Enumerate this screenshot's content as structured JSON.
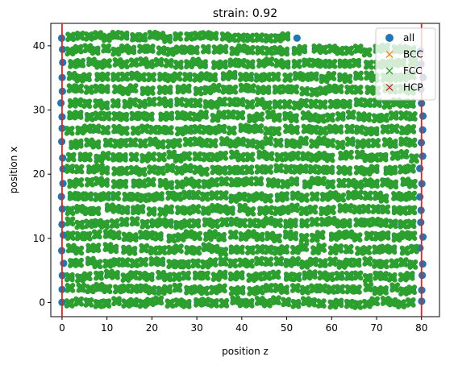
{
  "chart_data": {
    "type": "scatter",
    "title": "strain: 0.92",
    "xlabel": "position z",
    "ylabel": "position x",
    "xlim": [
      -2.5,
      84
    ],
    "ylim": [
      -2.2,
      43.5
    ],
    "xticks": [
      0,
      10,
      20,
      30,
      40,
      50,
      60,
      70,
      80
    ],
    "yticks": [
      0,
      10,
      20,
      30,
      40
    ],
    "grid": false,
    "legend_position": "top-right",
    "lattice": {
      "row_spacing": 2.07,
      "row_count": 21,
      "z_spacing": 2.0,
      "z_range": [
        0,
        80
      ],
      "top_row_z_max": 52
    },
    "boundary_lines": {
      "x": [
        0,
        80
      ],
      "color": "#d62728"
    },
    "series": [
      {
        "name": "all",
        "marker": "circle",
        "color": "#1f77b4"
      },
      {
        "name": "BCC",
        "marker": "x",
        "color": "#ff7f0e"
      },
      {
        "name": "FCC",
        "marker": "x",
        "color": "#2ca02c"
      },
      {
        "name": "HCP",
        "marker": "x",
        "color": "#d62728"
      }
    ]
  }
}
